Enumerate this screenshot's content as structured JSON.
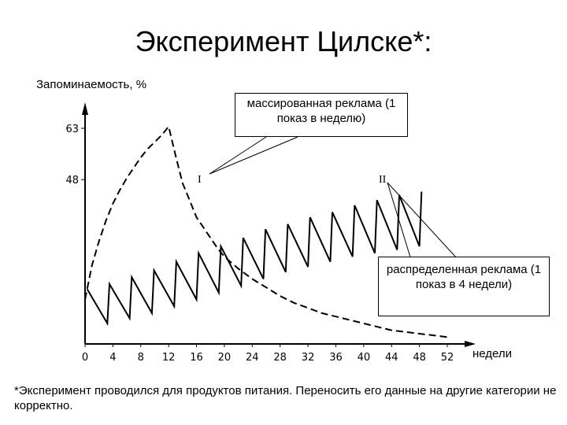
{
  "slide": {
    "title": "Эксперимент Цилске*:",
    "footnote": "*Эксперимент проводился для продуктов питания. Переносить его данные на другие категории не корректно."
  },
  "annotations": {
    "massed": "массированная реклама (1 показ в неделю)",
    "distributed": "распределенная реклама (1 показ в 4 недели)"
  },
  "chart_data": {
    "type": "line",
    "ylabel": "Запоминаемость, %",
    "xlabel": "недели",
    "x_ticks": [
      0,
      4,
      8,
      12,
      16,
      20,
      24,
      28,
      32,
      36,
      40,
      44,
      48,
      52
    ],
    "y_ticks": [
      48,
      63
    ],
    "series": [
      {
        "name": "I",
        "style": "dashed",
        "color": "#000000",
        "points": [
          [
            0,
            13
          ],
          [
            1,
            23
          ],
          [
            2,
            30
          ],
          [
            3,
            36
          ],
          [
            4,
            41
          ],
          [
            5,
            45
          ],
          [
            6,
            48.5
          ],
          [
            7,
            51.5
          ],
          [
            8,
            54.5
          ],
          [
            9,
            57
          ],
          [
            10,
            59
          ],
          [
            11,
            61
          ],
          [
            12,
            63.5
          ],
          [
            13,
            55
          ],
          [
            14,
            47
          ],
          [
            15,
            42
          ],
          [
            16,
            37
          ],
          [
            17,
            34
          ],
          [
            18,
            31
          ],
          [
            19,
            28
          ],
          [
            20,
            25.5
          ],
          [
            22,
            22
          ],
          [
            24,
            19
          ],
          [
            26,
            16.5
          ],
          [
            28,
            14
          ],
          [
            30,
            12
          ],
          [
            32,
            10.5
          ],
          [
            34,
            9
          ],
          [
            36,
            8
          ],
          [
            38,
            7
          ],
          [
            40,
            6
          ],
          [
            42,
            5
          ],
          [
            44,
            4
          ],
          [
            46,
            3.5
          ],
          [
            48,
            3
          ],
          [
            50,
            2.5
          ],
          [
            52,
            2
          ]
        ]
      },
      {
        "name": "II",
        "style": "solid",
        "color": "#000000",
        "peaks": [
          16,
          17.5,
          19.5,
          21.5,
          24,
          26.5,
          28.5,
          31,
          33.5,
          35,
          37,
          38.5,
          40.5,
          42,
          43.5,
          44.5
        ],
        "troughs": [
          6,
          7.5,
          9,
          11,
          13,
          15,
          17,
          19,
          21,
          22.5,
          24,
          25.5,
          26.5,
          27.5,
          28.5
        ]
      }
    ],
    "ylim": [
      0,
      70
    ],
    "xlim": [
      0,
      53
    ],
    "grid": false
  }
}
